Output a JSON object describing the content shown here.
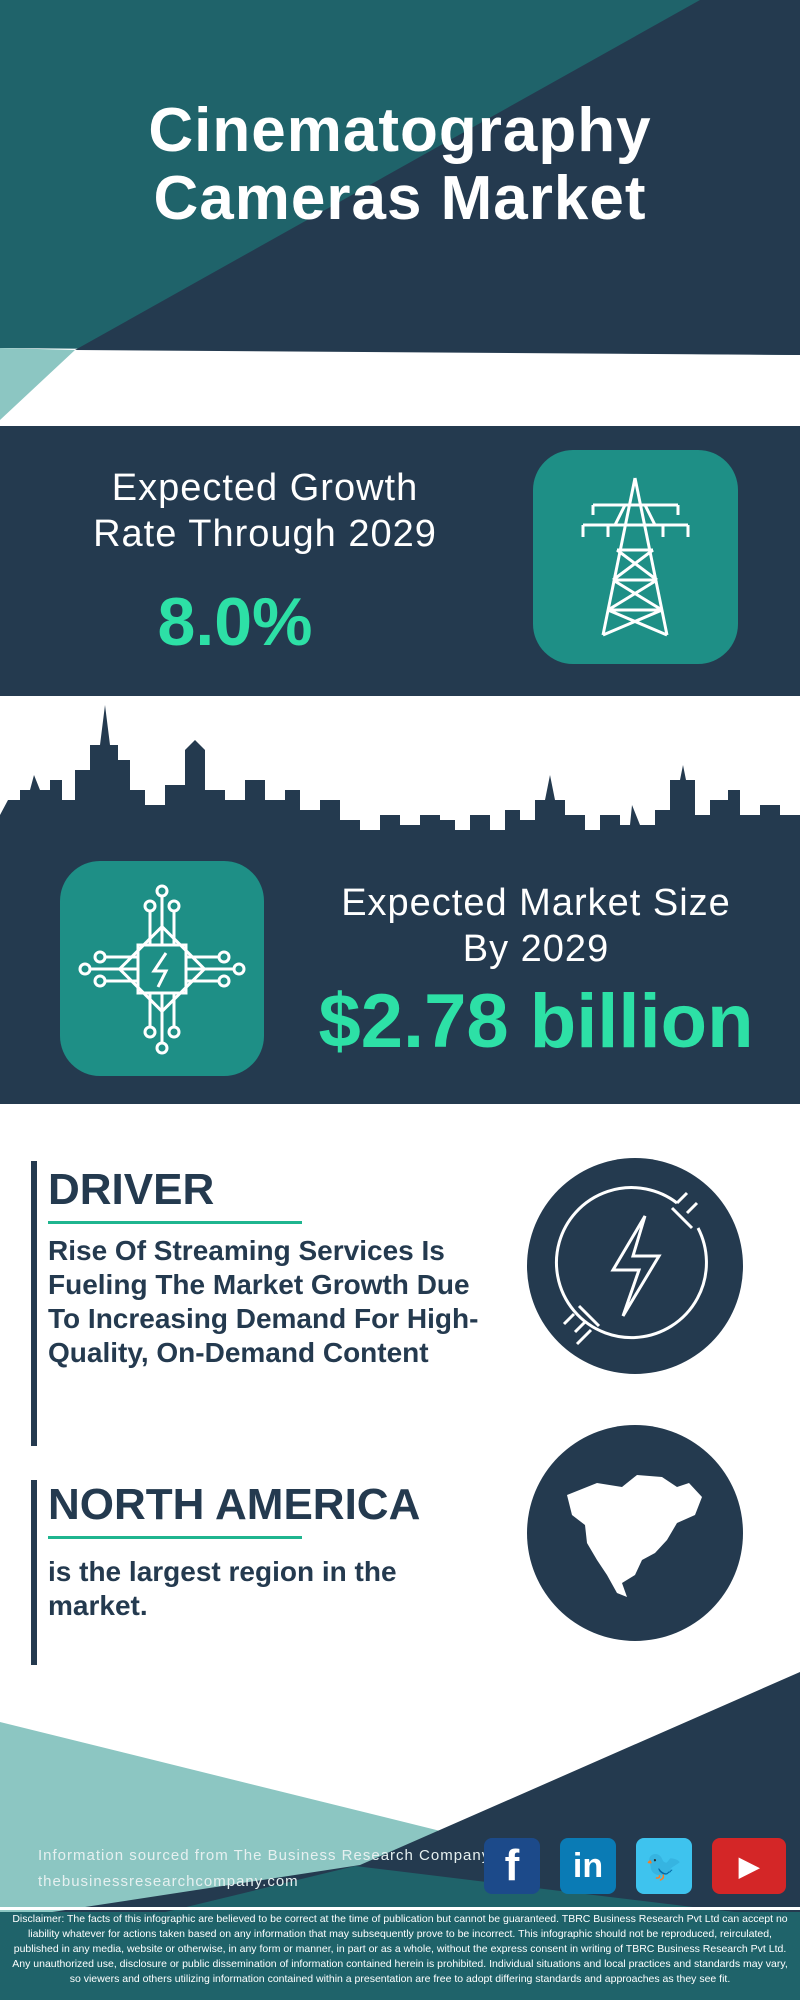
{
  "header": {
    "title_line1": "Cinematography",
    "title_line2": "Cameras Market"
  },
  "growth": {
    "label_line1": "Expected Growth",
    "label_line2": "Rate Through 2029",
    "value": "8.0%",
    "icon": "power-tower-icon"
  },
  "market_size": {
    "label_line1": "Expected Market Size",
    "label_line2": "By 2029",
    "value": "$2.78 billion",
    "icon": "circuit-chip-icon"
  },
  "driver": {
    "heading": "DRIVER",
    "text": "Rise Of Streaming Services Is Fueling The Market Growth Due To Increasing Demand For High-Quality, On-Demand Content",
    "icon": "lightning-plug-icon"
  },
  "region": {
    "heading": "NORTH AMERICA",
    "text": "is the largest region in the market.",
    "icon": "north-america-map-icon"
  },
  "footer": {
    "source": "Information sourced from The Business Research Company",
    "website": "thebusinessresearchcompany.com",
    "social": [
      {
        "name": "facebook",
        "glyph": "f",
        "color": "#1c4a8a"
      },
      {
        "name": "linkedin",
        "glyph": "in",
        "color": "#0a7bb5"
      },
      {
        "name": "twitter",
        "glyph": "🐦",
        "color": "#3ec3ee"
      },
      {
        "name": "youtube",
        "glyph": "▶",
        "color": "#d42627"
      }
    ],
    "disclaimer": "Disclaimer: The facts of this infographic are believed to be correct at the time of publication but cannot be guaranteed. TBRC Business Research Pvt Ltd can accept no liability whatever for actions taken based on any information that may subsequently prove to be incorrect. This infographic should not be reproduced, reirculated, published in any media, website or otherwise, in any form or manner, in part or as a whole, without the express consent in writing of TBRC Business Research Pvt Ltd. Any unauthorized use, disclosure or public dissemination of information contained herein is prohibited. Individual situations and local practices and standards may vary, so viewers and others utilizing information contained within a presentation are free to adopt differing standards and approaches as they see fit."
  },
  "colors": {
    "dark": "#243a4f",
    "teal": "#1f636a",
    "light_teal": "#8cc6c2",
    "accent": "#2de0a6",
    "icon_bg": "#1e8f86"
  }
}
